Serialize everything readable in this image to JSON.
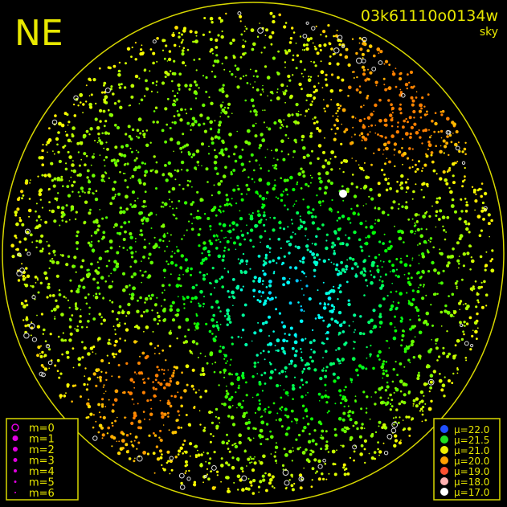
{
  "header": {
    "direction": "NE",
    "frame_id": "03k61110o0134w",
    "mode": "sky"
  },
  "magnitude_legend": [
    "m=0",
    "m=1",
    "m=2",
    "m=3",
    "m=4",
    "m=5",
    "m=6"
  ],
  "brightness_legend": [
    "μ=22.0",
    "μ=21.5",
    "μ=21.0",
    "μ=20.0",
    "μ=19.0",
    "μ=18.0",
    "μ=17.0"
  ]
}
